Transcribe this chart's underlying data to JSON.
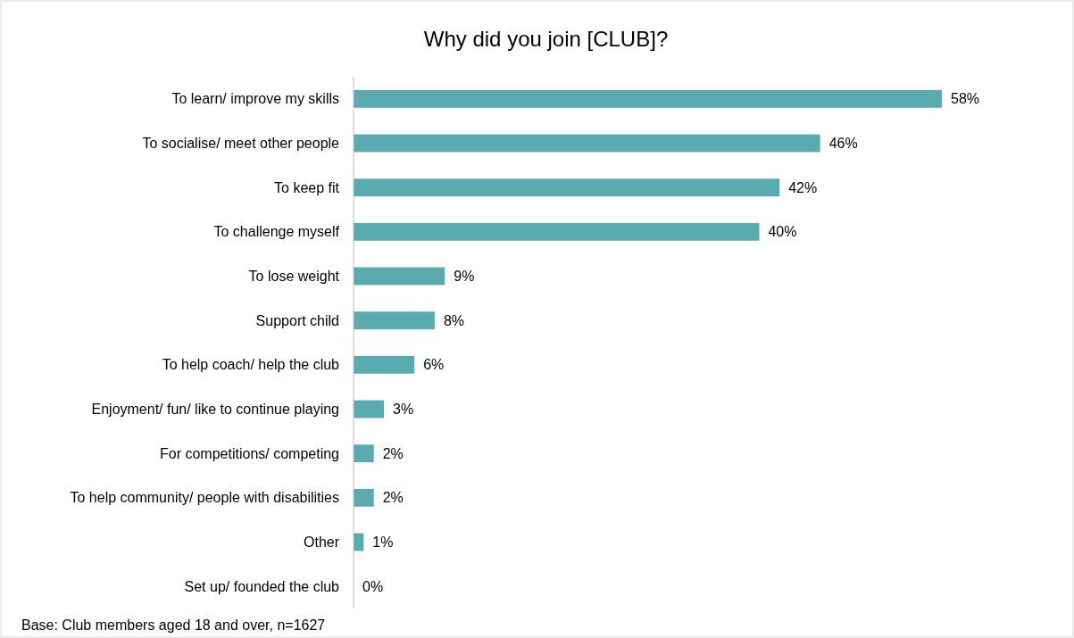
{
  "chart_data": {
    "type": "bar",
    "orientation": "horizontal",
    "title": "Why did you join [CLUB]?",
    "categories": [
      "To learn/ improve my skills",
      "To socialise/ meet other people",
      "To keep fit",
      "To challenge myself",
      "To lose weight",
      "Support child",
      "To help coach/ help the club",
      "Enjoyment/ fun/ like to continue playing",
      "For competitions/ competing",
      "To help community/ people with disabilities",
      "Other",
      "Set up/ founded the club"
    ],
    "values": [
      58,
      46,
      42,
      40,
      9,
      8,
      6,
      3,
      2,
      2,
      1,
      0
    ],
    "value_labels": [
      "58%",
      "46%",
      "42%",
      "40%",
      "9%",
      "8%",
      "6%",
      "3%",
      "2%",
      "2%",
      "1%",
      "0%"
    ],
    "color": "#5aabaf",
    "annotations": [
      "Base: Club members aged 18 and over, n=1627"
    ]
  }
}
